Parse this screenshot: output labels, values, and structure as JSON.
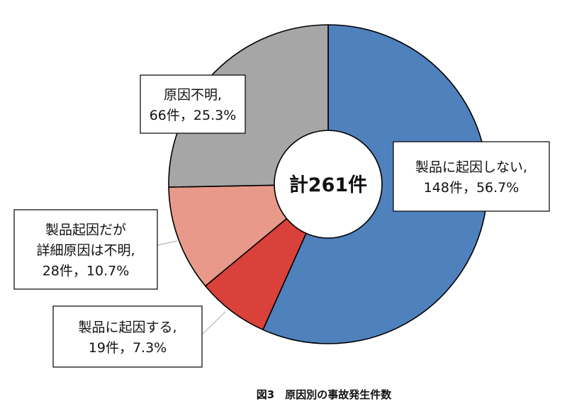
{
  "chart_data": {
    "type": "pie",
    "center_label": "計261件",
    "caption": "図3　原因別の事故発生件数",
    "slices": [
      {
        "label_lines": [
          "製品に起因しない,",
          "148件，56.7%"
        ],
        "value": 148,
        "percent": 56.7,
        "color": "#4f81bd"
      },
      {
        "label_lines": [
          "製品に起因する,",
          "19件，7.3%"
        ],
        "value": 19,
        "percent": 7.3,
        "color": "#d9413a"
      },
      {
        "label_lines": [
          "製品起因だが",
          "詳細原因は不明,",
          "28件，10.7%"
        ],
        "value": 28,
        "percent": 10.7,
        "color": "#e9998a"
      },
      {
        "label_lines": [
          "原因不明,",
          "66件，25.3%"
        ],
        "value": 66,
        "percent": 25.3,
        "color": "#a6a6a6"
      }
    ]
  }
}
